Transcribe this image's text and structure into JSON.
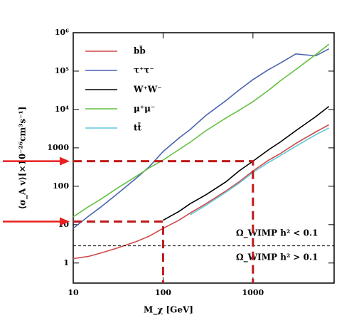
{
  "chart_data": {
    "type": "line",
    "y_label": "⟨σ_A v⟩[×10⁻²⁶cm³s⁻¹]",
    "x_label": "M_χ [GeV]",
    "log_x": true,
    "log_y": true,
    "xlim": [
      10,
      8000
    ],
    "ylim": [
      0.3,
      1000000
    ],
    "xticks": [
      10,
      100,
      1000
    ],
    "yticks": [
      1,
      10,
      100,
      1000,
      {
        "value": 10000,
        "label": "10⁴"
      },
      {
        "value": 100000,
        "label": "10⁵"
      },
      {
        "value": 1000000,
        "label": "10⁶"
      }
    ],
    "x": [
      10,
      15,
      20,
      30,
      50,
      70,
      100,
      150,
      200,
      300,
      500,
      700,
      1000,
      1500,
      2000,
      3000,
      5000,
      7000
    ],
    "series": [
      {
        "name": "bb̄",
        "color": "#d04848",
        "values": [
          1.3,
          1.5,
          1.8,
          2.4,
          3.6,
          5,
          8,
          13,
          20,
          35,
          75,
          130,
          250,
          480,
          700,
          1300,
          2600,
          4000
        ]
      },
      {
        "name": "τ⁺τ⁻",
        "color": "#4a64b0",
        "values": [
          8,
          17,
          28,
          60,
          160,
          320,
          800,
          1800,
          3000,
          7000,
          17000,
          32000,
          60000,
          110000,
          160000,
          280000,
          250000,
          380000
        ]
      },
      {
        "name": "W⁺W⁻",
        "color": "#000000",
        "values": [
          null,
          null,
          null,
          null,
          null,
          null,
          13,
          22,
          35,
          60,
          130,
          250,
          450,
          900,
          1400,
          2800,
          6500,
          12000
        ]
      },
      {
        "name": "μ⁺μ⁻",
        "color": "#64c040",
        "values": [
          16,
          30,
          45,
          85,
          180,
          300,
          480,
          900,
          1400,
          2800,
          6000,
          9500,
          16000,
          32000,
          55000,
          110000,
          270000,
          500000
        ]
      },
      {
        "name": "tt̄",
        "color": "#60c8d8",
        "values": [
          null,
          null,
          null,
          null,
          null,
          null,
          null,
          null,
          18,
          32,
          70,
          120,
          230,
          420,
          620,
          1100,
          2200,
          3300
        ]
      }
    ],
    "threshold": 2.8,
    "annotations": [
      "Ω_WIMP h² < 0.1",
      "Ω_WIMP h² > 0.1"
    ],
    "markers": [
      {
        "x": 100,
        "y": 12
      },
      {
        "x": 1000,
        "y": 450
      }
    ]
  }
}
